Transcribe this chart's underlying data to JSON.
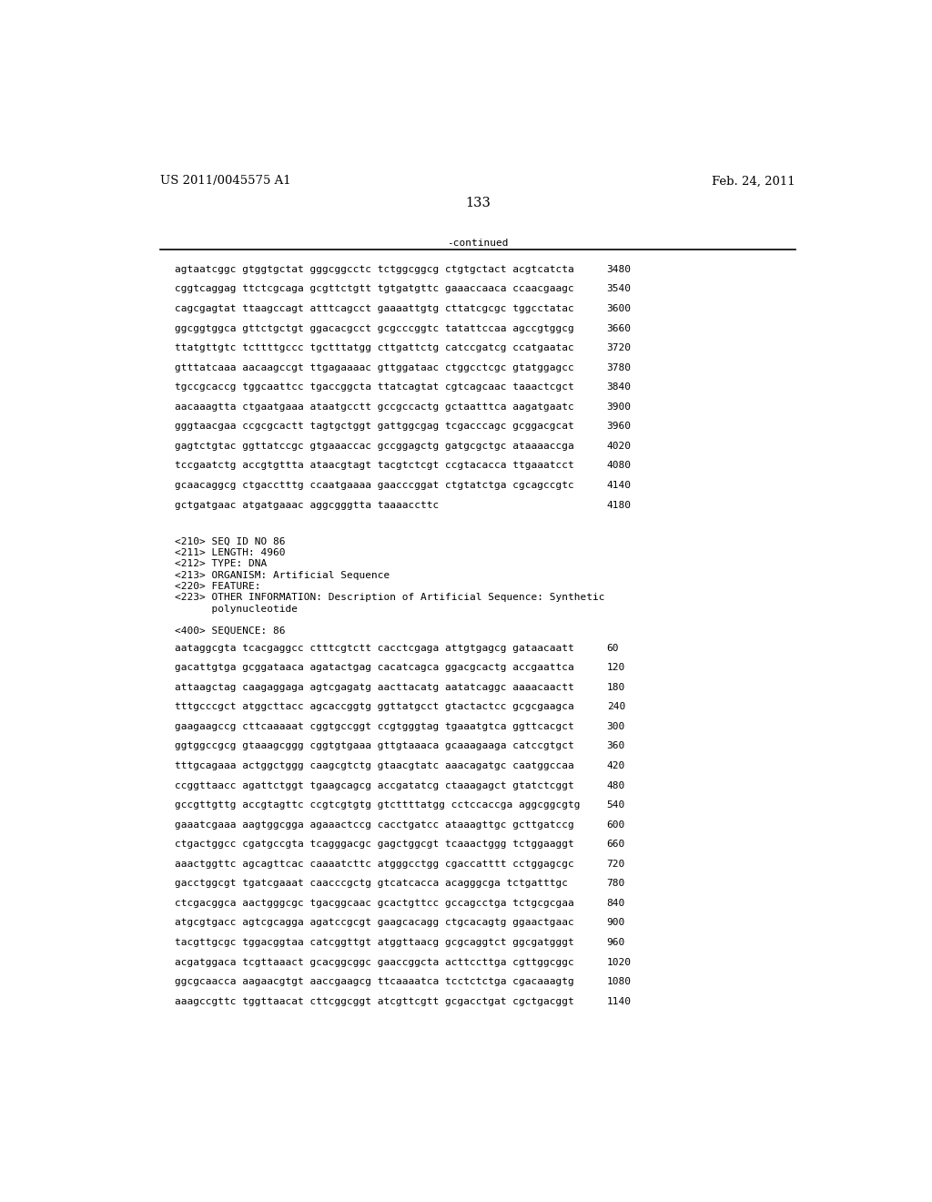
{
  "header_left": "US 2011/0045575 A1",
  "header_right": "Feb. 24, 2011",
  "page_number": "133",
  "continued_label": "-continued",
  "background_color": "#ffffff",
  "text_color": "#000000",
  "font_size_header": 9.5,
  "font_size_body": 8.0,
  "font_size_page": 10.5,
  "sequence_lines_top": [
    [
      "agtaatcggc gtggtgctat gggcggcctc tctggcggcg ctgtgctact acgtcatcta",
      "3480"
    ],
    [
      "cggtcaggag ttctcgcaga gcgttctgtt tgtgatgttc gaaaccaaca ccaacgaagc",
      "3540"
    ],
    [
      "cagcgagtat ttaagccagt atttcagcct gaaaattgtg cttatcgcgc tggcctatac",
      "3600"
    ],
    [
      "ggcggtggca gttctgctgt ggacacgcct gcgcccggtc tatattccaa agccgtggcg",
      "3660"
    ],
    [
      "ttatgttgtc tcttttgccc tgctttatgg cttgattctg catccgatcg ccatgaatac",
      "3720"
    ],
    [
      "gtttatcaaa aacaagccgt ttgagaaaac gttggataac ctggcctcgc gtatggagcc",
      "3780"
    ],
    [
      "tgccgcaccg tggcaattcc tgaccggcta ttatcagtat cgtcagcaac taaactcgct",
      "3840"
    ],
    [
      "aacaaagtta ctgaatgaaa ataatgcctt gccgccactg gctaatttca aagatgaatc",
      "3900"
    ],
    [
      "gggtaacgaa ccgcgcactt tagtgctggt gattggcgag tcgacccagc gcggacgcat",
      "3960"
    ],
    [
      "gagtctgtac ggttatccgc gtgaaaccac gccggagctg gatgcgctgc ataaaaccga",
      "4020"
    ],
    [
      "tccgaatctg accgtgttta ataacgtagt tacgtctcgt ccgtacacca ttgaaatcct",
      "4080"
    ],
    [
      "gcaacaggcg ctgacctttg ccaatgaaaa gaacccggat ctgtatctga cgcagccgtc",
      "4140"
    ],
    [
      "gctgatgaac atgatgaaac aggcgggtta taaaaccttc",
      "4180"
    ]
  ],
  "metadata_lines": [
    "<210> SEQ ID NO 86",
    "<211> LENGTH: 4960",
    "<212> TYPE: DNA",
    "<213> ORGANISM: Artificial Sequence",
    "<220> FEATURE:",
    "<223> OTHER INFORMATION: Description of Artificial Sequence: Synthetic",
    "      polynucleotide"
  ],
  "sequence_label": "<400> SEQUENCE: 86",
  "sequence_lines_bottom": [
    [
      "aataggcgta tcacgaggcc ctttcgtctt cacctcgaga attgtgagcg gataacaatt",
      "60"
    ],
    [
      "gacattgtga gcggataaca agatactgag cacatcagca ggacgcactg accgaattca",
      "120"
    ],
    [
      "attaagctag caagaggaga agtcgagatg aacttacatg aatatcaggc aaaacaactt",
      "180"
    ],
    [
      "tttgcccgct atggcttacc agcaccggtg ggttatgcct gtactactcc gcgcgaagca",
      "240"
    ],
    [
      "gaagaagccg cttcaaaaat cggtgccggt ccgtgggtag tgaaatgtca ggttcacgct",
      "300"
    ],
    [
      "ggtggccgcg gtaaagcggg cggtgtgaaa gttgtaaaca gcaaagaaga catccgtgct",
      "360"
    ],
    [
      "tttgcagaaa actggctggg caagcgtctg gtaacgtatc aaacagatgc caatggccaa",
      "420"
    ],
    [
      "ccggttaacc agattctggt tgaagcagcg accgatatcg ctaaagagct gtatctcggt",
      "480"
    ],
    [
      "gccgttgttg accgtagttc ccgtcgtgtg gtcttttatgg cctccaccga aggcggcgtg",
      "540"
    ],
    [
      "gaaatcgaaa aagtggcgga agaaactccg cacctgatcc ataaagttgc gcttgatccg",
      "600"
    ],
    [
      "ctgactggcc cgatgccgta tcagggacgc gagctggcgt tcaaactggg tctggaaggt",
      "660"
    ],
    [
      "aaactggttc agcagttcac caaaatcttc atgggcctgg cgaccatttt cctggagcgc",
      "720"
    ],
    [
      "gacctggcgt tgatcgaaat caacccgctg gtcatcacca acagggcga tctgatttgc",
      "780"
    ],
    [
      "ctcgacggca aactgggcgc tgacggcaac gcactgttcc gccagcctga tctgcgcgaa",
      "840"
    ],
    [
      "atgcgtgacc agtcgcagga agatccgcgt gaagcacagg ctgcacagtg ggaactgaac",
      "900"
    ],
    [
      "tacgttgcgc tggacggtaa catcggttgt atggttaacg gcgcaggtct ggcgatgggt",
      "960"
    ],
    [
      "acgatggaca tcgttaaact gcacggcggc gaaccggcta acttccttga cgttggcggc",
      "1020"
    ],
    [
      "ggcgcaacca aagaacgtgt aaccgaagcg ttcaaaatca tcctctctga cgacaaagtg",
      "1080"
    ],
    [
      "aaagccgttc tggttaacat cttcggcggt atcgttcgtt gcgacctgat cgctgacggt",
      "1140"
    ]
  ]
}
